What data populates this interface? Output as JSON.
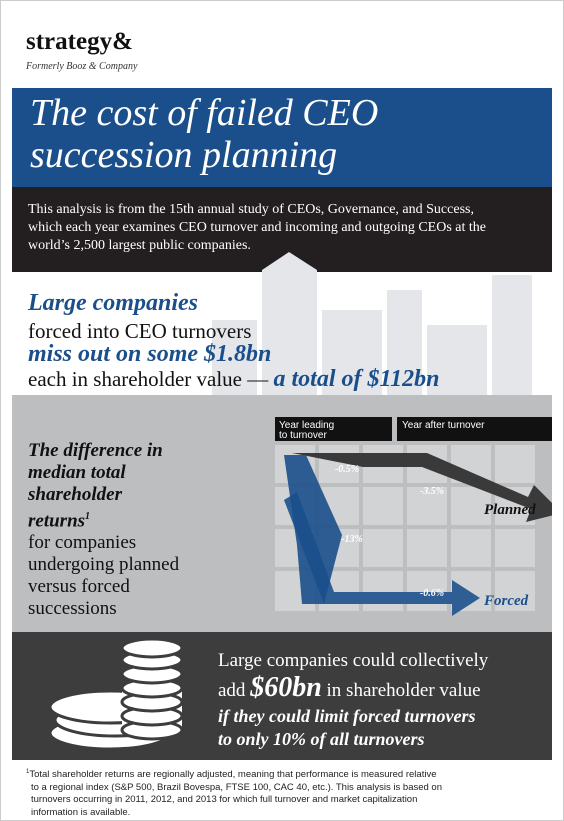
{
  "header": {
    "brand": "strategy&",
    "tagline": "Formerly Booz & Company"
  },
  "title": [
    "The cost of failed CEO",
    "succession planning"
  ],
  "intro": [
    "This analysis is from the 15th annual study of CEOs, Governance, and Success,",
    "which each year examines CEO turnover and incoming and outgoing CEOs at the",
    "world’s 2,500 largest public companies."
  ],
  "headline": {
    "line1": "Large companies",
    "line2": "forced into CEO turnovers",
    "line3": "miss out on some $1.8bn",
    "line4a": "each in shareholder value —",
    "line4b": "a total of $112bn"
  },
  "returns": {
    "bold": [
      "The difference in",
      "median total",
      "shareholder",
      "returns"
    ],
    "note_mark": "1",
    "plain": [
      "for companies",
      "undergoing planned",
      "versus forced",
      "successions"
    ]
  },
  "diagram": {
    "columns": [
      [
        "Year leading",
        "to turnover"
      ],
      [
        "Year after turnover"
      ]
    ],
    "labels": {
      "planned_before": "-0.5%",
      "planned_after": "-3.5%",
      "forced_before": "-13%",
      "forced_after": "-0.6%"
    },
    "planned": "Planned",
    "forced": "Forced"
  },
  "bottom": {
    "line1": "Large companies could collectively",
    "line2a": "add",
    "line2b": "$60bn",
    "line2c": "in shareholder value",
    "line3": "if they could limit forced turnovers",
    "line4": "to only 10% of all turnovers"
  },
  "footnote": {
    "mark": "1",
    "lines": [
      "Total shareholder returns are regionally adjusted, meaning that performance is measured relative",
      "to a regional index (S&P 500, Brazil Bovespa, FTSE 100, CAC 40, etc.). This analysis is based on",
      "turnovers occurring in 2011, 2012, and 2013 for which full turnover and market capitalization",
      "information is available."
    ]
  }
}
